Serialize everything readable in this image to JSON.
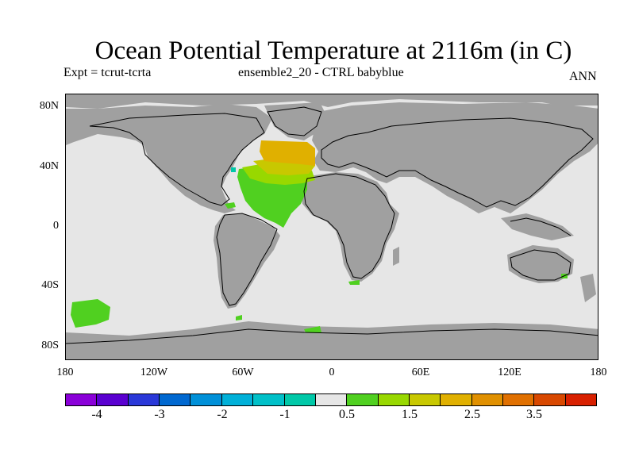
{
  "title": "Ocean Potential Temperature at 2116m (in C)",
  "subtitle_left": "Expt = tcrut-tcrta",
  "subtitle_center": "ensemble2_20 - CTRL babyblue",
  "subtitle_right": "ANN",
  "map": {
    "land_color": "#a0a0a0",
    "ocean_color": "#e6e6e6",
    "lat_labels": [
      "80N",
      "40N",
      "0",
      "40S",
      "80S"
    ],
    "lon_labels": [
      "180",
      "120W",
      "60W",
      "0",
      "60E",
      "120E",
      "180"
    ]
  },
  "colorbar": {
    "colors": [
      "#8a00d8",
      "#5a00d0",
      "#2a38d8",
      "#0068d0",
      "#0090d8",
      "#00b0d8",
      "#00c0c8",
      "#00c8a8",
      "#e6e6e6",
      "#50d020",
      "#98d800",
      "#c8c800",
      "#e0b000",
      "#e09000",
      "#e07000",
      "#d84800",
      "#d82000"
    ],
    "labels": [
      "-4",
      "-3",
      "-2",
      "-1",
      "0.5",
      "1.5",
      "2.5",
      "3.5"
    ]
  }
}
